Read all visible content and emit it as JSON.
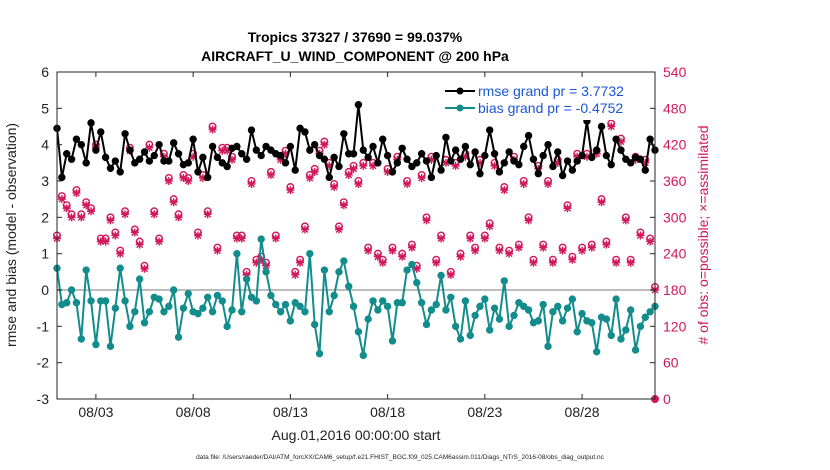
{
  "chart_data": {
    "type": "line",
    "title_line1": "Tropics 37327 / 37690 = 99.037%",
    "title_line2": "AIRCRAFT_U_WIND_COMPONENT @ 200 hPa",
    "xlabel": "Aug.01,2016 00:00:00 start",
    "ylabel_left": "rmse and bias (model - observation)",
    "ylabel_right": "# of obs: o=possible; ×=assimilated",
    "footer": "data file: /Users/raeder/DAI/ATM_forcXX/CAM6_setup/f.e21.FHIST_BGC.f09_025.CAM6assim.011/Diags_NTrS_2016-08/obs_diag_output.nc",
    "xlim": [
      1.0,
      31.75
    ],
    "ylim_left": [
      -3,
      6
    ],
    "ylim_right": [
      0,
      540
    ],
    "x_ticks": [
      3,
      8,
      13,
      18,
      23,
      28
    ],
    "x_tick_labels": [
      "08/03",
      "08/08",
      "08/13",
      "08/18",
      "08/23",
      "08/28"
    ],
    "y_left_ticks": [
      -3,
      -2,
      -1,
      0,
      1,
      2,
      3,
      4,
      5,
      6
    ],
    "y_right_ticks": [
      0,
      60,
      120,
      180,
      240,
      300,
      360,
      420,
      480,
      540
    ],
    "zero_line": 0,
    "legend_position": "top-right",
    "colors": {
      "rmse": "#000000",
      "bias": "#138c8c",
      "obs": "#d0195b",
      "legend_text": "#1a56d6",
      "zero_line": "#bdbdbd"
    },
    "series": [
      {
        "name": "rmse",
        "legend": "rmse grand pr = 3.7732",
        "x": [
          1.0,
          1.25,
          1.5,
          1.75,
          2.0,
          2.25,
          2.5,
          2.75,
          3.0,
          3.25,
          3.5,
          3.75,
          4.0,
          4.25,
          4.5,
          4.75,
          5.0,
          5.25,
          5.5,
          5.75,
          6.0,
          6.25,
          6.5,
          6.75,
          7.0,
          7.25,
          7.5,
          7.75,
          8.0,
          8.25,
          8.5,
          8.75,
          9.0,
          9.25,
          9.5,
          9.75,
          10.0,
          10.25,
          10.5,
          10.75,
          11.0,
          11.25,
          11.5,
          11.75,
          12.0,
          12.25,
          12.5,
          12.75,
          13.0,
          13.25,
          13.5,
          13.75,
          14.0,
          14.25,
          14.5,
          14.75,
          15.0,
          15.25,
          15.5,
          15.75,
          16.0,
          16.25,
          16.5,
          16.75,
          17.0,
          17.25,
          17.5,
          17.75,
          18.0,
          18.25,
          18.5,
          18.75,
          19.0,
          19.25,
          19.5,
          19.75,
          20.0,
          20.25,
          20.5,
          20.75,
          21.0,
          21.25,
          21.5,
          21.75,
          22.0,
          22.25,
          22.5,
          22.75,
          23.0,
          23.25,
          23.5,
          23.75,
          24.0,
          24.25,
          24.5,
          24.75,
          25.0,
          25.25,
          25.5,
          25.75,
          26.0,
          26.25,
          26.5,
          26.75,
          27.0,
          27.25,
          27.5,
          27.75,
          28.0,
          28.25,
          28.5,
          28.75,
          29.0,
          29.25,
          29.5,
          29.75,
          30.0,
          30.25,
          30.5,
          30.75,
          31.0,
          31.25,
          31.5,
          31.75
        ],
        "values": [
          4.45,
          3.1,
          3.75,
          3.6,
          4.15,
          4.0,
          3.5,
          4.6,
          3.85,
          4.35,
          3.65,
          3.35,
          3.55,
          3.25,
          4.3,
          3.85,
          3.5,
          3.6,
          3.8,
          3.55,
          3.7,
          4.0,
          3.55,
          3.55,
          4.05,
          3.75,
          3.45,
          3.5,
          4.15,
          3.25,
          3.65,
          3.1,
          3.95,
          3.65,
          3.5,
          3.4,
          3.9,
          3.95,
          3.75,
          3.6,
          4.4,
          3.85,
          3.7,
          3.95,
          3.85,
          3.75,
          3.7,
          3.5,
          3.95,
          3.3,
          4.45,
          4.35,
          3.85,
          4.0,
          3.7,
          3.6,
          3.1,
          3.65,
          3.4,
          4.3,
          3.75,
          3.75,
          5.1,
          3.85,
          3.65,
          3.95,
          3.5,
          4.15,
          3.7,
          3.25,
          3.5,
          3.9,
          3.6,
          3.4,
          3.5,
          3.75,
          3.55,
          3.1,
          3.7,
          3.3,
          4.2,
          3.55,
          3.85,
          3.6,
          3.95,
          3.45,
          3.8,
          3.2,
          3.7,
          4.4,
          3.75,
          3.25,
          3.5,
          3.8,
          3.55,
          3.45,
          3.95,
          4.25,
          3.6,
          3.2,
          3.7,
          4.0,
          3.4,
          3.8,
          3.15,
          3.55,
          3.3,
          3.55,
          3.7,
          4.65,
          3.65,
          3.85,
          4.5,
          3.7,
          3.45,
          4.15,
          3.85,
          3.6,
          3.5,
          3.65,
          3.6,
          3.3,
          4.15,
          3.85
        ]
      },
      {
        "name": "bias",
        "legend": "bias grand pr = -0.4752",
        "x": [
          1.0,
          1.25,
          1.5,
          1.75,
          2.0,
          2.25,
          2.5,
          2.75,
          3.0,
          3.25,
          3.5,
          3.75,
          4.0,
          4.25,
          4.5,
          4.75,
          5.0,
          5.25,
          5.5,
          5.75,
          6.0,
          6.25,
          6.5,
          6.75,
          7.0,
          7.25,
          7.5,
          7.75,
          8.0,
          8.25,
          8.5,
          8.75,
          9.0,
          9.25,
          9.5,
          9.75,
          10.0,
          10.25,
          10.5,
          10.75,
          11.0,
          11.25,
          11.5,
          11.75,
          12.0,
          12.25,
          12.5,
          12.75,
          13.0,
          13.25,
          13.5,
          13.75,
          14.0,
          14.25,
          14.5,
          14.75,
          15.0,
          15.25,
          15.5,
          15.75,
          16.0,
          16.25,
          16.5,
          16.75,
          17.0,
          17.25,
          17.5,
          17.75,
          18.0,
          18.25,
          18.5,
          18.75,
          19.0,
          19.25,
          19.5,
          19.75,
          20.0,
          20.25,
          20.5,
          20.75,
          21.0,
          21.25,
          21.5,
          21.75,
          22.0,
          22.25,
          22.5,
          22.75,
          23.0,
          23.25,
          23.5,
          23.75,
          24.0,
          24.25,
          24.5,
          24.75,
          25.0,
          25.25,
          25.5,
          25.75,
          26.0,
          26.25,
          26.5,
          26.75,
          27.0,
          27.25,
          27.5,
          27.75,
          28.0,
          28.25,
          28.5,
          28.75,
          29.0,
          29.25,
          29.5,
          29.75,
          30.0,
          30.25,
          30.5,
          30.75,
          31.0,
          31.25,
          31.5,
          31.75
        ],
        "values": [
          0.6,
          -0.4,
          -0.35,
          0.0,
          -0.35,
          -1.35,
          0.55,
          -0.3,
          -1.5,
          -0.3,
          -0.3,
          -1.55,
          -0.5,
          0.6,
          -0.3,
          -1.0,
          -0.6,
          0.3,
          -0.9,
          -0.6,
          -0.2,
          -0.25,
          -0.6,
          -0.45,
          0.0,
          -1.3,
          -0.5,
          -0.1,
          -0.6,
          -0.65,
          -0.5,
          -0.2,
          -0.6,
          -0.15,
          -0.3,
          -1.0,
          -0.55,
          1.0,
          -0.6,
          0.3,
          -0.2,
          -0.3,
          1.4,
          0.5,
          -0.15,
          -0.4,
          -0.6,
          -0.4,
          -0.85,
          -0.35,
          -0.45,
          -0.6,
          1.0,
          -0.95,
          -1.75,
          0.55,
          -0.6,
          -0.15,
          0.5,
          0.8,
          0.1,
          -0.45,
          -1.15,
          -1.8,
          -0.8,
          -0.3,
          -0.55,
          -0.3,
          -0.45,
          -1.4,
          -0.35,
          -0.35,
          0.55,
          0.7,
          0.2,
          -0.35,
          -0.95,
          -0.55,
          -0.4,
          0.4,
          -0.55,
          -0.2,
          -1.0,
          -1.35,
          -0.3,
          -1.25,
          -0.7,
          -0.45,
          -0.25,
          -1.1,
          -0.5,
          -0.8,
          0.25,
          -1.0,
          -0.7,
          -0.35,
          -0.45,
          -0.55,
          -0.9,
          -0.85,
          -0.4,
          -1.55,
          -0.6,
          -0.45,
          -0.85,
          -0.5,
          -0.25,
          -1.15,
          -0.65,
          -0.85,
          -0.9,
          -1.7,
          -0.75,
          -0.8,
          -1.25,
          -0.25,
          -1.35,
          -1.1,
          -0.55,
          -1.65,
          -1.0,
          -0.75,
          -0.6,
          -0.45
        ]
      },
      {
        "name": "obs_possible",
        "marker": "o",
        "axis": "right",
        "x": [
          1.0,
          1.25,
          1.5,
          1.75,
          2.0,
          2.25,
          2.5,
          2.75,
          3.0,
          3.25,
          3.5,
          3.75,
          4.0,
          4.25,
          4.5,
          4.75,
          5.0,
          5.25,
          5.5,
          5.75,
          6.0,
          6.25,
          6.5,
          6.75,
          7.0,
          7.25,
          7.5,
          7.75,
          8.0,
          8.25,
          8.5,
          8.75,
          9.0,
          9.25,
          9.5,
          9.75,
          10.0,
          10.25,
          10.5,
          10.75,
          11.0,
          11.25,
          11.5,
          11.75,
          12.0,
          12.25,
          12.5,
          12.75,
          13.0,
          13.25,
          13.5,
          13.75,
          14.0,
          14.25,
          14.5,
          14.75,
          15.0,
          15.25,
          15.5,
          15.75,
          16.0,
          16.25,
          16.5,
          16.75,
          17.0,
          17.25,
          17.5,
          17.75,
          18.0,
          18.25,
          18.5,
          18.75,
          19.0,
          19.25,
          19.5,
          19.75,
          20.0,
          20.25,
          20.5,
          20.75,
          21.0,
          21.25,
          21.5,
          21.75,
          22.0,
          22.25,
          22.5,
          22.75,
          23.0,
          23.25,
          23.5,
          23.75,
          24.0,
          24.25,
          24.5,
          24.75,
          25.0,
          25.25,
          25.5,
          25.75,
          26.0,
          26.25,
          26.5,
          26.75,
          27.0,
          27.25,
          27.5,
          27.75,
          28.0,
          28.25,
          28.5,
          28.75,
          29.0,
          29.25,
          29.5,
          29.75,
          30.0,
          30.25,
          30.5,
          30.75,
          31.0,
          31.25,
          31.5,
          31.75
        ],
        "values": [
          270,
          335,
          320,
          305,
          345,
          305,
          325,
          315,
          420,
          265,
          265,
          300,
          275,
          245,
          310,
          415,
          280,
          260,
          220,
          420,
          310,
          265,
          405,
          365,
          330,
          305,
          370,
          365,
          405,
          275,
          370,
          310,
          450,
          250,
          415,
          415,
          400,
          270,
          270,
          210,
          360,
          230,
          235,
          225,
          375,
          270,
          400,
          410,
          350,
          210,
          230,
          285,
          370,
          380,
          410,
          425,
          390,
          355,
          285,
          325,
          375,
          385,
          360,
          390,
          250,
          390,
          240,
          230,
          380,
          250,
          400,
          240,
          360,
          255,
          220,
          370,
          300,
          400,
          230,
          270,
          395,
          210,
          390,
          240,
          405,
          270,
          250,
          395,
          270,
          290,
          390,
          250,
          350,
          245,
          400,
          255,
          360,
          300,
          230,
          385,
          255,
          360,
          230,
          395,
          250,
          320,
          235,
          405,
          250,
          405,
          255,
          410,
          330,
          260,
          455,
          230,
          430,
          300,
          230,
          400,
          275,
          395,
          265,
          185
        ]
      },
      {
        "name": "obs_assimilated",
        "marker": "x",
        "axis": "right",
        "x": [
          1.0,
          1.25,
          1.5,
          1.75,
          2.0,
          2.25,
          2.5,
          2.75,
          3.0,
          3.25,
          3.5,
          3.75,
          4.0,
          4.25,
          4.5,
          4.75,
          5.0,
          5.25,
          5.5,
          5.75,
          6.0,
          6.25,
          6.5,
          6.75,
          7.0,
          7.25,
          7.5,
          7.75,
          8.0,
          8.25,
          8.5,
          8.75,
          9.0,
          9.25,
          9.5,
          9.75,
          10.0,
          10.25,
          10.5,
          10.75,
          11.0,
          11.25,
          11.5,
          11.75,
          12.0,
          12.25,
          12.5,
          12.75,
          13.0,
          13.25,
          13.5,
          13.75,
          14.0,
          14.25,
          14.5,
          14.75,
          15.0,
          15.25,
          15.5,
          15.75,
          16.0,
          16.25,
          16.5,
          16.75,
          17.0,
          17.25,
          17.5,
          17.75,
          18.0,
          18.25,
          18.5,
          18.75,
          19.0,
          19.25,
          19.5,
          19.75,
          20.0,
          20.25,
          20.5,
          20.75,
          21.0,
          21.25,
          21.5,
          21.75,
          22.0,
          22.25,
          22.5,
          22.75,
          23.0,
          23.25,
          23.5,
          23.75,
          24.0,
          24.25,
          24.5,
          24.75,
          25.0,
          25.25,
          25.5,
          25.75,
          26.0,
          26.25,
          26.5,
          26.75,
          27.0,
          27.25,
          27.5,
          27.75,
          28.0,
          28.25,
          28.5,
          28.75,
          29.0,
          29.25,
          29.5,
          29.75,
          30.0,
          30.25,
          30.5,
          30.75,
          31.0,
          31.25,
          31.5,
          31.75
        ],
        "values": [
          265,
          330,
          315,
          300,
          340,
          300,
          320,
          310,
          415,
          260,
          260,
          295,
          270,
          240,
          305,
          410,
          275,
          255,
          215,
          415,
          305,
          260,
          400,
          360,
          325,
          300,
          365,
          360,
          400,
          270,
          365,
          305,
          445,
          245,
          410,
          410,
          395,
          265,
          265,
          205,
          355,
          225,
          230,
          220,
          370,
          265,
          395,
          405,
          345,
          205,
          225,
          280,
          365,
          375,
          405,
          420,
          385,
          350,
          280,
          320,
          370,
          380,
          355,
          385,
          245,
          385,
          235,
          225,
          375,
          245,
          395,
          235,
          355,
          250,
          215,
          365,
          295,
          395,
          225,
          265,
          390,
          205,
          385,
          235,
          400,
          265,
          245,
          390,
          265,
          285,
          385,
          245,
          345,
          240,
          395,
          250,
          355,
          295,
          225,
          380,
          250,
          355,
          225,
          390,
          245,
          315,
          230,
          400,
          245,
          400,
          250,
          405,
          325,
          255,
          450,
          225,
          425,
          295,
          225,
          395,
          270,
          390,
          260,
          180
        ]
      }
    ],
    "right_axis_extra": {
      "x": [
        31.75
      ],
      "values": [
        0
      ]
    }
  }
}
